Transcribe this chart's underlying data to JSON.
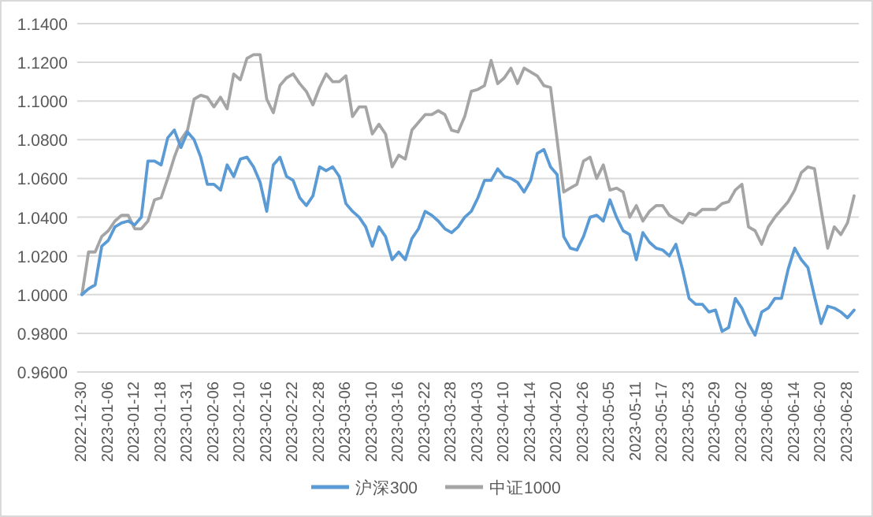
{
  "chart_data": {
    "type": "line",
    "categories": [
      "2022-12-30",
      null,
      null,
      null,
      "2023-01-06",
      null,
      null,
      null,
      "2023-01-12",
      null,
      null,
      null,
      "2023-01-18",
      null,
      null,
      null,
      "2023-01-31",
      null,
      null,
      null,
      "2023-02-06",
      null,
      null,
      null,
      "2023-02-10",
      null,
      null,
      null,
      "2023-02-16",
      null,
      null,
      null,
      "2023-02-22",
      null,
      null,
      null,
      "2023-02-28",
      null,
      null,
      null,
      "2023-03-06",
      null,
      null,
      null,
      "2023-03-10",
      null,
      null,
      null,
      "2023-03-16",
      null,
      null,
      null,
      "2023-03-22",
      null,
      null,
      null,
      "2023-03-28",
      null,
      null,
      null,
      "2023-04-03",
      null,
      null,
      null,
      "2023-04-10",
      null,
      null,
      null,
      "2023-04-14",
      null,
      null,
      null,
      "2023-04-20",
      null,
      null,
      null,
      "2023-04-26",
      null,
      null,
      null,
      "2023-05-05",
      null,
      null,
      null,
      "2023-05-11",
      null,
      null,
      null,
      "2023-05-17",
      null,
      null,
      null,
      "2023-05-23",
      null,
      null,
      null,
      "2023-05-29",
      null,
      null,
      null,
      "2023-06-02",
      null,
      null,
      null,
      "2023-06-08",
      null,
      null,
      null,
      "2023-06-14",
      null,
      null,
      null,
      "2023-06-20",
      null,
      null,
      null,
      "2023-06-28",
      null
    ],
    "series": [
      {
        "name": "沪深300",
        "color": "#5b9bd5",
        "values": [
          1.0,
          1.003,
          1.005,
          1.025,
          1.028,
          1.035,
          1.037,
          1.038,
          1.036,
          1.04,
          1.069,
          1.069,
          1.067,
          1.081,
          1.085,
          1.076,
          1.084,
          1.08,
          1.071,
          1.057,
          1.057,
          1.054,
          1.067,
          1.061,
          1.07,
          1.071,
          1.066,
          1.058,
          1.043,
          1.067,
          1.071,
          1.061,
          1.059,
          1.05,
          1.046,
          1.051,
          1.066,
          1.064,
          1.066,
          1.061,
          1.047,
          1.043,
          1.04,
          1.035,
          1.025,
          1.035,
          1.03,
          1.018,
          1.022,
          1.018,
          1.029,
          1.034,
          1.043,
          1.041,
          1.038,
          1.034,
          1.032,
          1.035,
          1.04,
          1.043,
          1.05,
          1.059,
          1.059,
          1.065,
          1.061,
          1.06,
          1.058,
          1.053,
          1.059,
          1.073,
          1.075,
          1.066,
          1.062,
          1.03,
          1.024,
          1.023,
          1.03,
          1.04,
          1.041,
          1.038,
          1.049,
          1.04,
          1.033,
          1.031,
          1.018,
          1.032,
          1.027,
          1.024,
          1.023,
          1.02,
          1.026,
          1.013,
          0.998,
          0.995,
          0.995,
          0.991,
          0.992,
          0.981,
          0.983,
          0.998,
          0.993,
          0.985,
          0.979,
          0.991,
          0.993,
          0.998,
          0.998,
          1.013,
          1.024,
          1.018,
          1.014,
          0.999,
          0.985,
          0.994,
          0.993,
          0.991,
          0.988,
          0.992
        ]
      },
      {
        "name": "中证1000",
        "color": "#a5a5a5",
        "values": [
          1.0,
          1.022,
          1.022,
          1.03,
          1.033,
          1.038,
          1.041,
          1.041,
          1.034,
          1.034,
          1.038,
          1.049,
          1.05,
          1.06,
          1.071,
          1.08,
          1.085,
          1.101,
          1.103,
          1.102,
          1.097,
          1.102,
          1.096,
          1.114,
          1.111,
          1.122,
          1.124,
          1.124,
          1.101,
          1.094,
          1.108,
          1.112,
          1.114,
          1.109,
          1.105,
          1.098,
          1.107,
          1.114,
          1.11,
          1.11,
          1.113,
          1.092,
          1.097,
          1.097,
          1.083,
          1.088,
          1.083,
          1.066,
          1.072,
          1.07,
          1.085,
          1.089,
          1.093,
          1.093,
          1.095,
          1.093,
          1.085,
          1.084,
          1.092,
          1.105,
          1.106,
          1.108,
          1.121,
          1.109,
          1.112,
          1.117,
          1.109,
          1.117,
          1.115,
          1.113,
          1.108,
          1.107,
          1.08,
          1.053,
          1.055,
          1.057,
          1.069,
          1.071,
          1.06,
          1.067,
          1.054,
          1.055,
          1.053,
          1.04,
          1.046,
          1.038,
          1.043,
          1.046,
          1.046,
          1.041,
          1.039,
          1.037,
          1.042,
          1.041,
          1.044,
          1.044,
          1.044,
          1.047,
          1.048,
          1.054,
          1.057,
          1.035,
          1.033,
          1.026,
          1.035,
          1.04,
          1.044,
          1.048,
          1.054,
          1.063,
          1.066,
          1.065,
          1.044,
          1.024,
          1.035,
          1.031,
          1.037,
          1.051
        ]
      }
    ],
    "ylim": [
      0.96,
      1.14
    ],
    "yticks": [
      {
        "value": 0.96,
        "label": "0.9600"
      },
      {
        "value": 0.98,
        "label": "0.9800"
      },
      {
        "value": 1.0,
        "label": "1.0000"
      },
      {
        "value": 1.02,
        "label": "1.0200"
      },
      {
        "value": 1.04,
        "label": "1.0400"
      },
      {
        "value": 1.06,
        "label": "1.0600"
      },
      {
        "value": 1.08,
        "label": "1.0800"
      },
      {
        "value": 1.1,
        "label": "1.1000"
      },
      {
        "value": 1.12,
        "label": "1.1200"
      },
      {
        "value": 1.14,
        "label": "1.1400"
      }
    ],
    "grid": "y",
    "legend": "bottom"
  }
}
